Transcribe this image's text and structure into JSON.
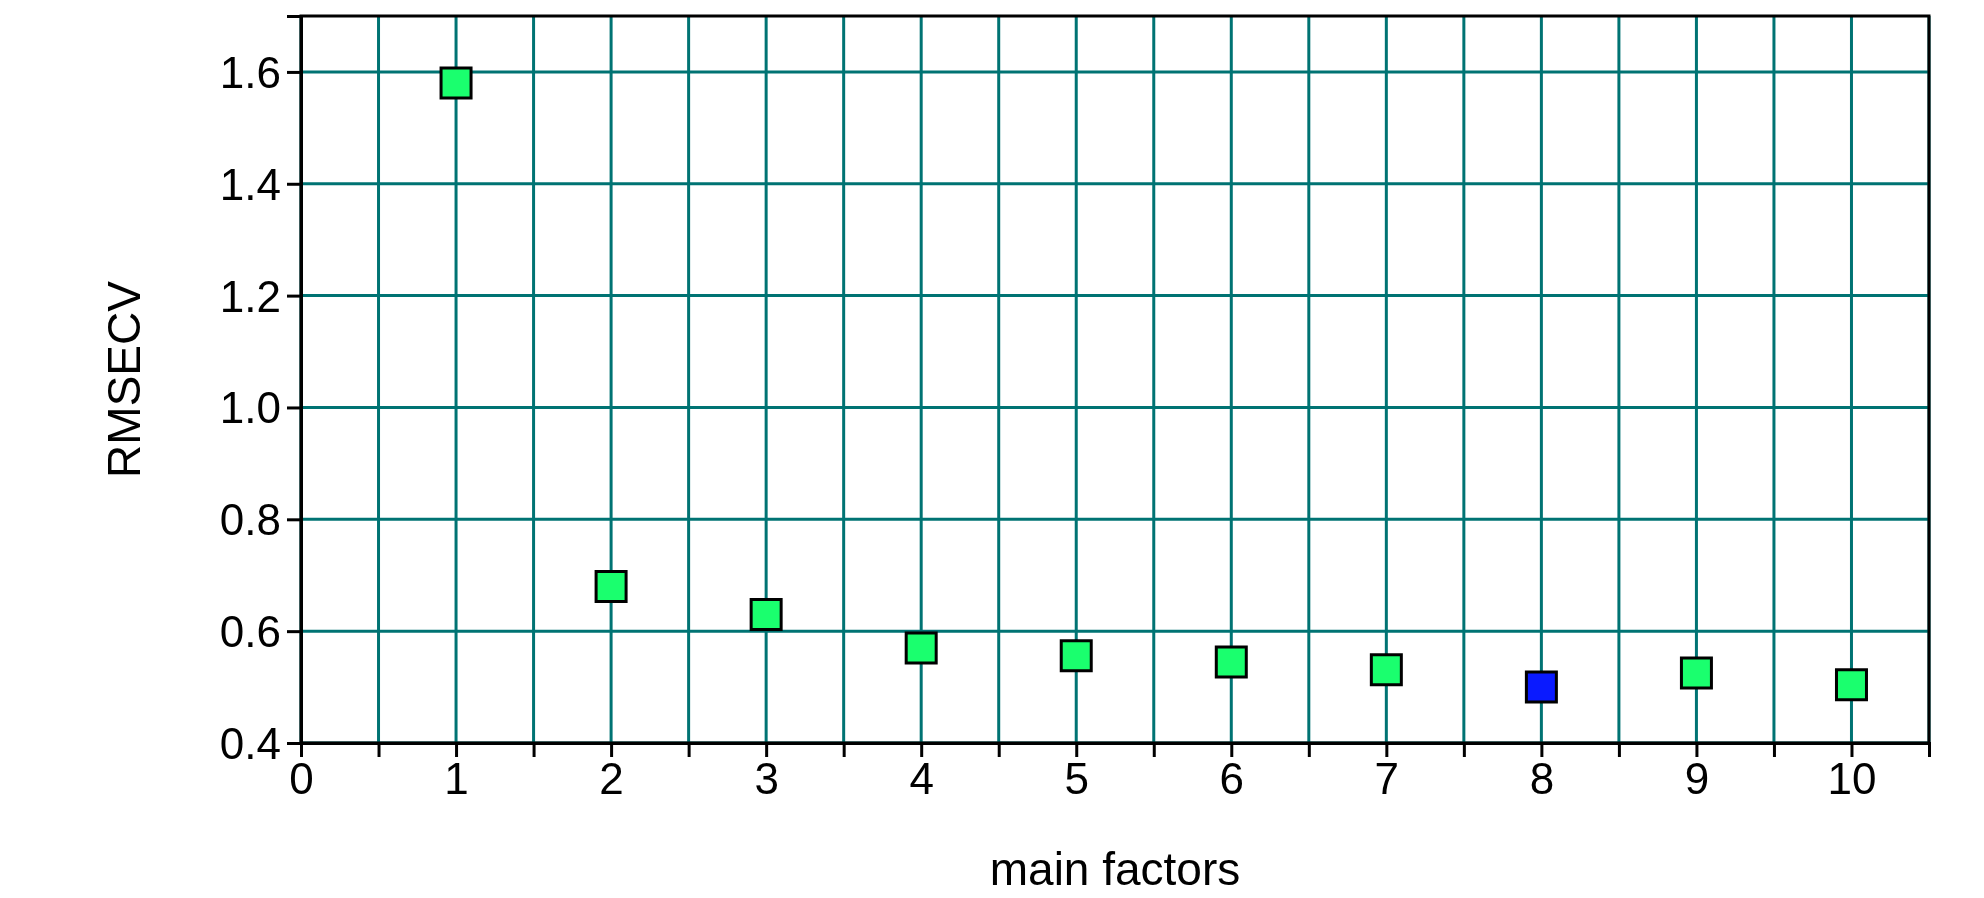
{
  "chart_data": {
    "type": "scatter",
    "xlabel": "main factors",
    "ylabel": "RMSECV",
    "x": [
      1,
      2,
      3,
      4,
      5,
      6,
      7,
      8,
      9,
      10
    ],
    "values": [
      1.58,
      0.68,
      0.63,
      0.57,
      0.556,
      0.545,
      0.531,
      0.5,
      0.525,
      0.504
    ],
    "colors": [
      "#1aff6e",
      "#1aff6e",
      "#1aff6e",
      "#1aff6e",
      "#1aff6e",
      "#1aff6e",
      "#1aff6e",
      "#0a1aff",
      "#1aff6e",
      "#1aff6e"
    ],
    "marker": "square",
    "grid": true,
    "xlim": [
      0,
      10.5
    ],
    "xticks": [
      0,
      {
        "value": 0.5,
        "label": null
      },
      1,
      {
        "value": 1.5,
        "label": null
      },
      2,
      {
        "value": 2.5,
        "label": null
      },
      3,
      {
        "value": 3.5,
        "label": null
      },
      4,
      {
        "value": 4.5,
        "label": null
      },
      5,
      {
        "value": 5.5,
        "label": null
      },
      6,
      {
        "value": 6.5,
        "label": null
      },
      7,
      {
        "value": 7.5,
        "label": null
      },
      8,
      {
        "value": 8.5,
        "label": null
      },
      9,
      {
        "value": 9.5,
        "label": null
      },
      10,
      {
        "value": 10.5,
        "label": null
      }
    ],
    "ylim": [
      0.4,
      1.7
    ],
    "yticks": [
      0.4,
      0.6,
      0.8,
      {
        "value": 1,
        "label": "1.0"
      },
      1.2,
      1.4,
      1.6
    ]
  }
}
